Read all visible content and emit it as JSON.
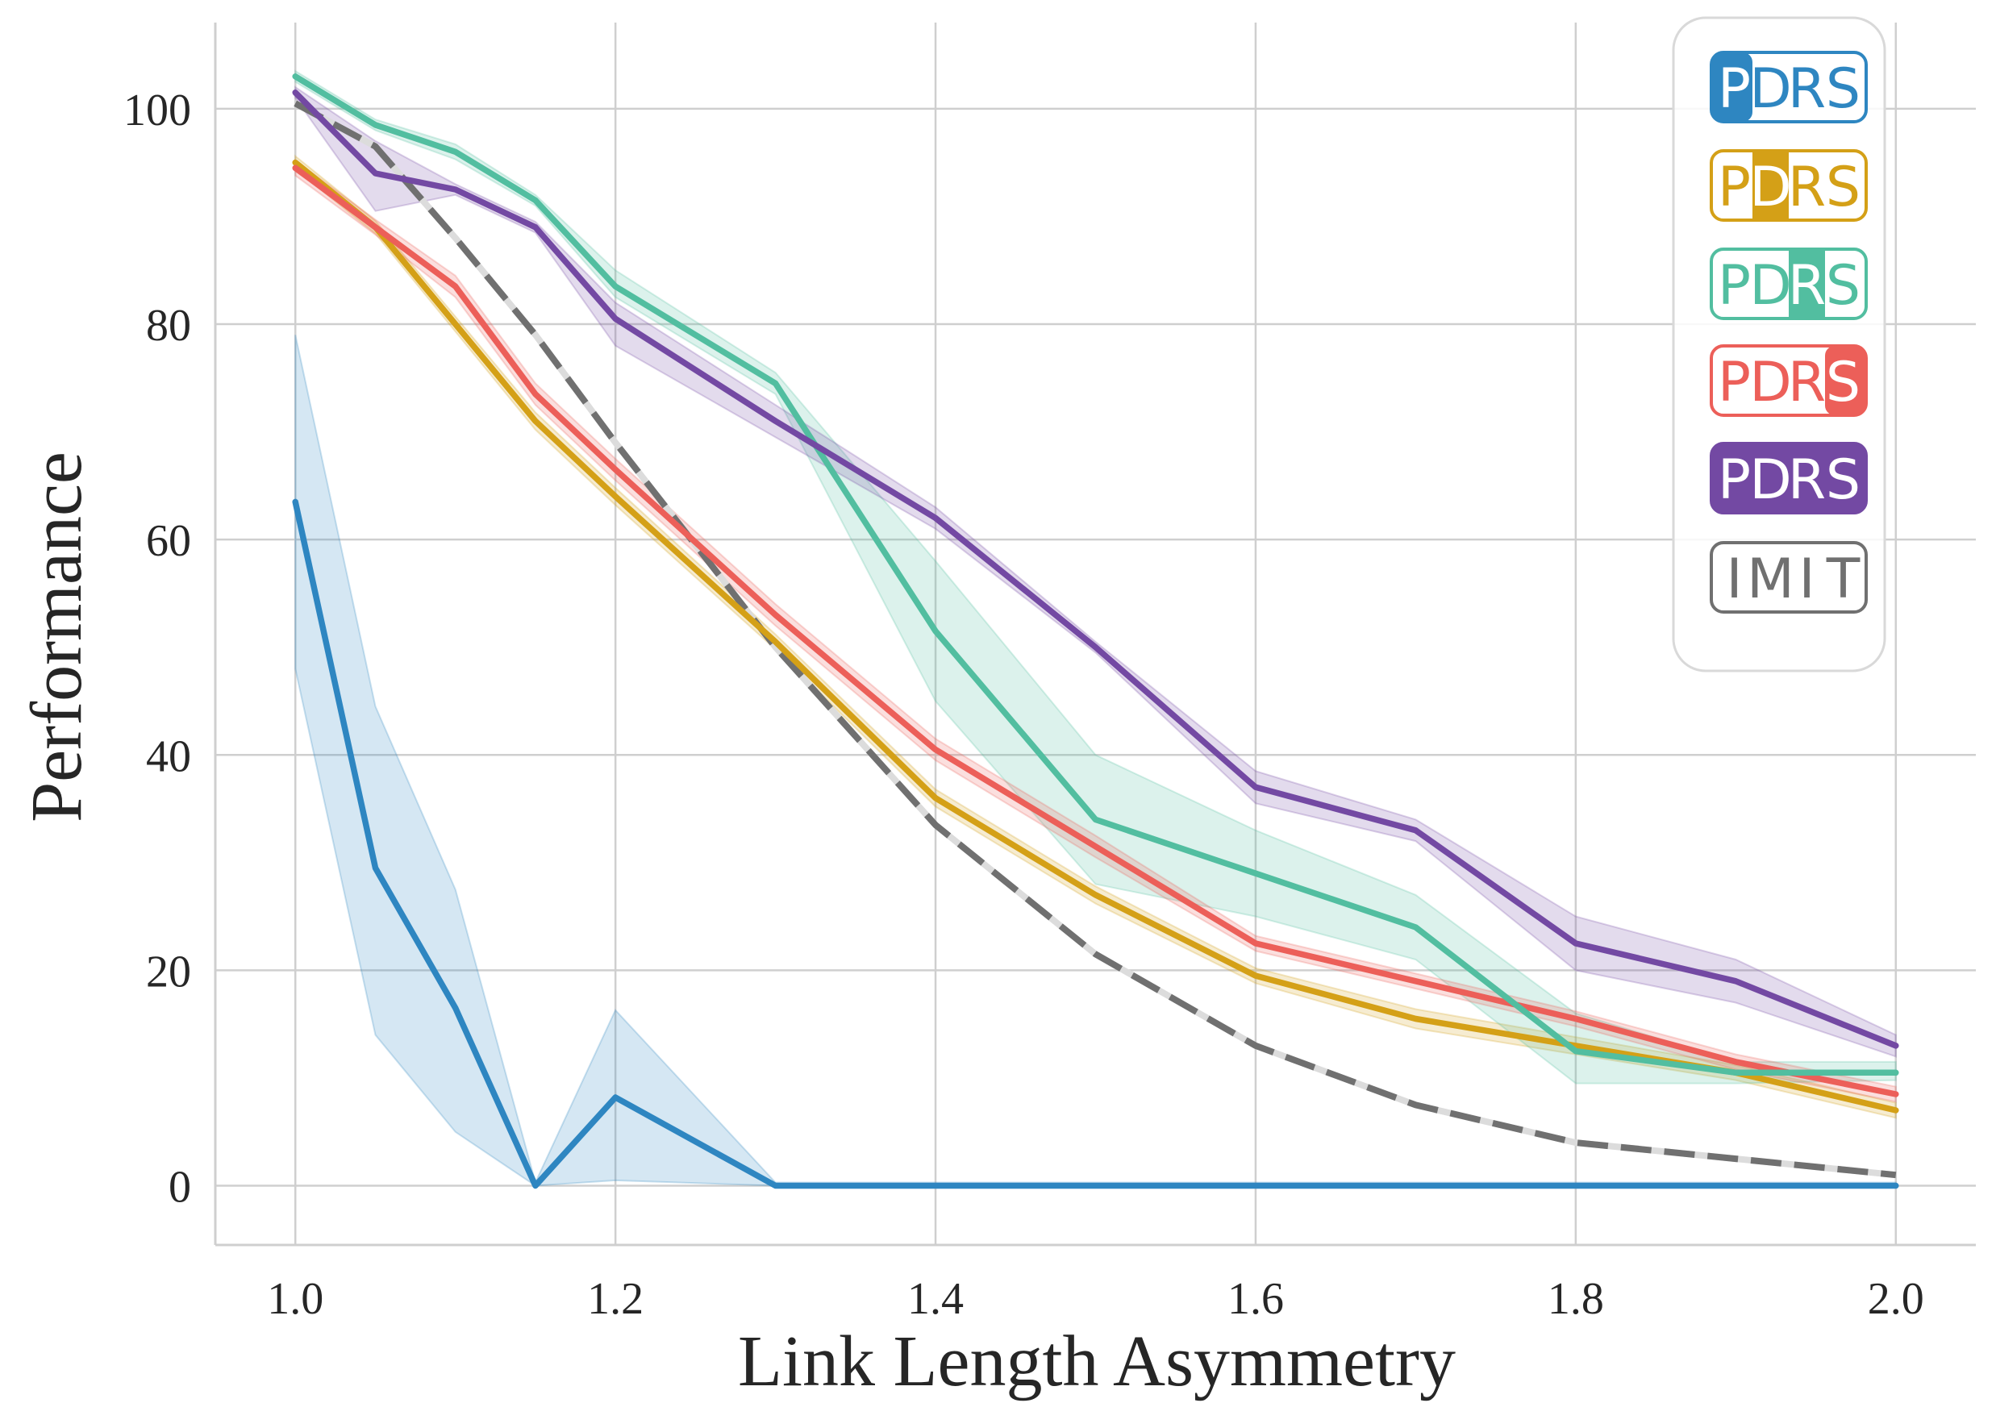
{
  "chart_data": {
    "type": "line",
    "title": "",
    "xlabel": "Link Length Asymmetry",
    "ylabel": "Performance",
    "xlim": [
      0.95,
      2.05
    ],
    "ylim": [
      -5.5,
      108
    ],
    "xticks": [
      "1.0",
      "1.2",
      "1.4",
      "1.6",
      "1.8",
      "2.0"
    ],
    "yticks": [
      "0",
      "20",
      "40",
      "60",
      "80",
      "100"
    ],
    "grid": true,
    "legend_position": "top-right",
    "x": [
      1.0,
      1.05,
      1.1,
      1.15,
      1.2,
      1.3,
      1.4,
      1.5,
      1.6,
      1.7,
      1.8,
      1.9,
      2.0
    ],
    "series": [
      {
        "name": "PDRS",
        "highlight": "P",
        "color": "#2e86c1",
        "dashed": false,
        "values": [
          63.5,
          29.5,
          16.5,
          0,
          8.2,
          0,
          0,
          0,
          0,
          0,
          0,
          0,
          0
        ],
        "lower": [
          48,
          14,
          5,
          0,
          0.5,
          0,
          0,
          0,
          0,
          0,
          0,
          0,
          0
        ],
        "upper": [
          79,
          44.5,
          27.5,
          0.3,
          16.3,
          0.3,
          0.3,
          0.3,
          0.3,
          0.3,
          0.3,
          0.3,
          0.3
        ]
      },
      {
        "name": "PDRS",
        "highlight": "D",
        "color": "#d4a017",
        "dashed": false,
        "values": [
          95,
          89,
          80,
          71,
          64,
          50.5,
          36,
          27,
          19.5,
          15.5,
          13,
          10.5,
          7
        ],
        "lower": [
          94.4,
          88.4,
          79.3,
          70.2,
          63.2,
          49.8,
          35.2,
          26.2,
          18.8,
          14.6,
          12.2,
          9.8,
          6.3
        ],
        "upper": [
          95.6,
          89.6,
          80.7,
          71.8,
          64.8,
          51.2,
          36.8,
          27.8,
          20.2,
          16.4,
          13.8,
          11.2,
          7.7
        ]
      },
      {
        "name": "PDRS",
        "highlight": "R",
        "color": "#52bea0",
        "dashed": false,
        "values": [
          103,
          98.5,
          96,
          91.5,
          83.5,
          74.5,
          51.5,
          34,
          29,
          24,
          12.5,
          10.5,
          10.5
        ],
        "lower": [
          102.5,
          98,
          95.3,
          91,
          82.5,
          73.5,
          45,
          28,
          25,
          21,
          9.5,
          9.5,
          9.8
        ],
        "upper": [
          103.5,
          99,
          96.7,
          92,
          85,
          75.5,
          58,
          40,
          33,
          27,
          16,
          11.5,
          11.5
        ]
      },
      {
        "name": "PDRS",
        "highlight": "S",
        "color": "#ec5f59",
        "dashed": false,
        "values": [
          94.5,
          89,
          83.5,
          73.5,
          66.5,
          53,
          40.5,
          31.5,
          22.5,
          19,
          15.5,
          11.5,
          8.5
        ],
        "lower": [
          93.8,
          88.3,
          82.5,
          72.5,
          65.5,
          52,
          39.5,
          30.5,
          21.8,
          18.3,
          14.8,
          10.8,
          7.8
        ],
        "upper": [
          95.2,
          89.7,
          84.5,
          74.5,
          67.5,
          54,
          41.5,
          32.5,
          23.2,
          19.7,
          16.2,
          12.2,
          9.2
        ]
      },
      {
        "name": "PDRS",
        "highlight": "all",
        "color": "#7349a3",
        "dashed": false,
        "values": [
          101.5,
          94,
          92.5,
          89,
          80.5,
          71,
          62,
          50,
          37,
          33,
          22.5,
          19,
          13
        ],
        "lower": [
          101,
          90.5,
          92,
          88.5,
          78,
          69.5,
          61,
          49.5,
          35.5,
          32,
          20,
          17,
          12
        ],
        "upper": [
          102,
          97,
          93,
          89.5,
          82,
          72.5,
          63,
          50.5,
          38.5,
          34,
          25,
          21,
          14
        ]
      },
      {
        "name": "IMIT",
        "highlight": "none",
        "color": "#707070",
        "dashed": true,
        "values": [
          100.5,
          96.5,
          88,
          79,
          69,
          50,
          33.5,
          21.5,
          13,
          7.5,
          4,
          2.5,
          1
        ],
        "lower": [],
        "upper": []
      }
    ]
  }
}
